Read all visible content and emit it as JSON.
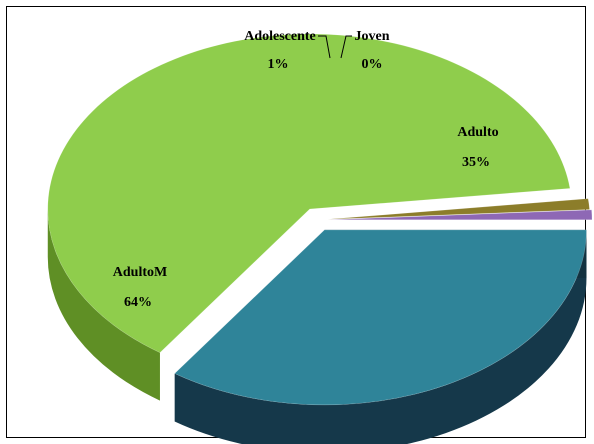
{
  "chart_data": {
    "type": "pie",
    "style": "3d-exploded",
    "title": "",
    "legend": "none",
    "slices": [
      {
        "label": "Adulto",
        "value": 35,
        "pct_label": "35%",
        "color": "#2f8499",
        "side_color": "#15384a"
      },
      {
        "label": "AdultoM",
        "value": 64,
        "pct_label": "64%",
        "color": "#8fcd4c",
        "side_color": "#5f8f25"
      },
      {
        "label": "Adolescente",
        "value": 1,
        "pct_label": "1%",
        "color": "#8c7d2a",
        "side_color": "#5c5118"
      },
      {
        "label": "Joven",
        "value": 0,
        "pct_label": "0%",
        "color": "#8e68b5",
        "side_color": "#5a3f7a"
      }
    ]
  }
}
